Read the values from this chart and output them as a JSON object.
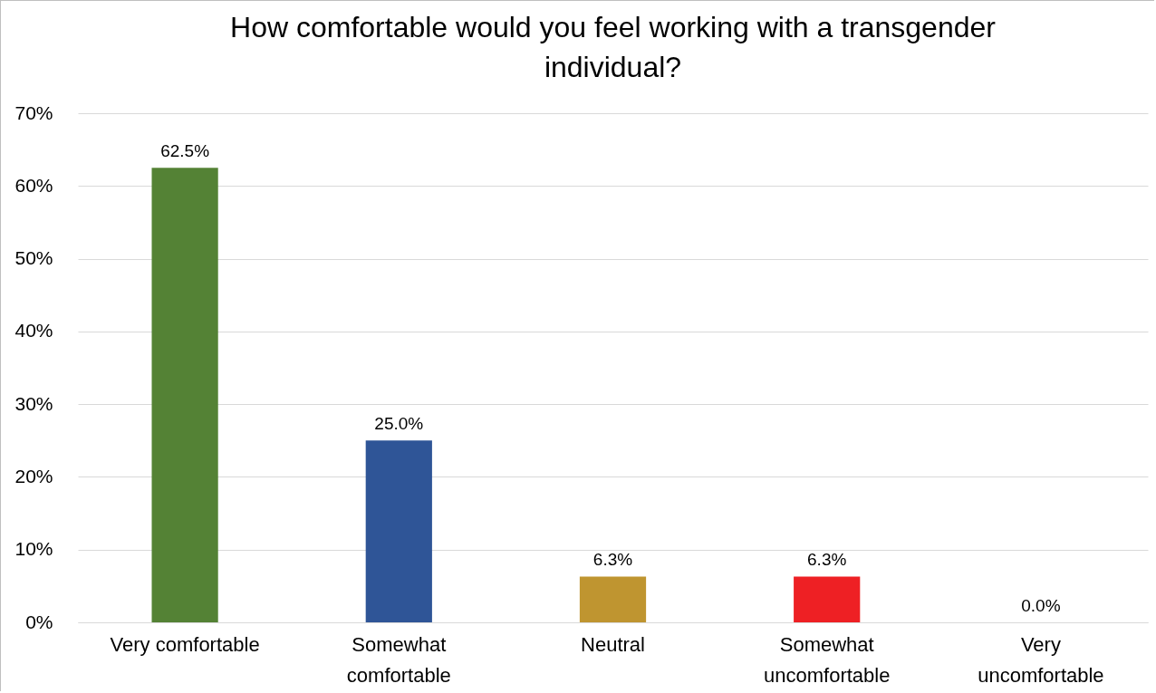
{
  "chart_data": {
    "type": "bar",
    "title": "How comfortable would you feel working with a transgender individual?",
    "categories": [
      "Very comfortable",
      "Somewhat comfortable",
      "Neutral",
      "Somewhat uncomfortable",
      "Very uncomfortable"
    ],
    "values": [
      62.5,
      25.0,
      6.3,
      6.3,
      0.0
    ],
    "value_labels": [
      "62.5%",
      "25.0%",
      "6.3%",
      "6.3%",
      "0.0%"
    ],
    "colors": [
      "#548235",
      "#2f5597",
      "#bf9530",
      "#ee2024",
      "#7f7f7f"
    ],
    "ylim": [
      0,
      70
    ],
    "yticks": [
      {
        "value": 0,
        "label": "0%"
      },
      {
        "value": 10,
        "label": "10%"
      },
      {
        "value": 20,
        "label": "20%"
      },
      {
        "value": 30,
        "label": "30%"
      },
      {
        "value": 40,
        "label": "40%"
      },
      {
        "value": 50,
        "label": "50%"
      },
      {
        "value": 60,
        "label": "60%"
      },
      {
        "value": 70,
        "label": "70%"
      }
    ],
    "grid": "y"
  }
}
